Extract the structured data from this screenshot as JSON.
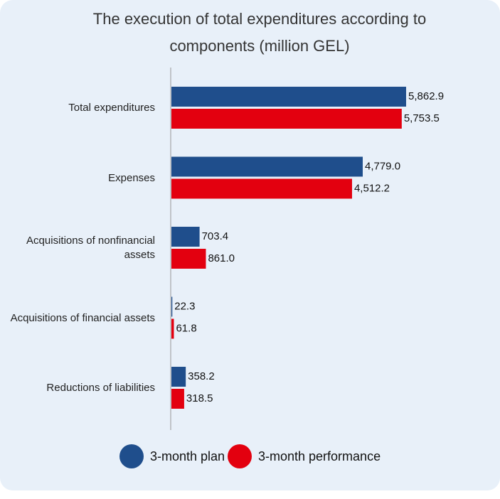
{
  "chart_data": {
    "type": "bar",
    "orientation": "horizontal",
    "title": "The execution of total expenditures according to components (million GEL)",
    "categories": [
      "Total expenditures",
      "Expenses",
      "Acquisitions of nonfinancial assets",
      "Acquisitions of financial assets",
      "Reductions of liabilities"
    ],
    "series": [
      {
        "name": "3-month plan",
        "color": "#1f4e8c",
        "values": [
          5862.9,
          4779.0,
          703.4,
          22.3,
          358.2
        ],
        "value_labels": [
          "5,862.9",
          "4,779.0",
          "703.4",
          "22.3",
          "358.2"
        ]
      },
      {
        "name": "3-month performance",
        "color": "#e3000f",
        "values": [
          5753.5,
          4512.2,
          861.0,
          61.8,
          318.5
        ],
        "value_labels": [
          "5,753.5",
          "4,512.2",
          "861.0",
          "61.8",
          "318.5"
        ]
      }
    ],
    "xlim": [
      0,
      7000
    ],
    "legend": "bottom"
  }
}
